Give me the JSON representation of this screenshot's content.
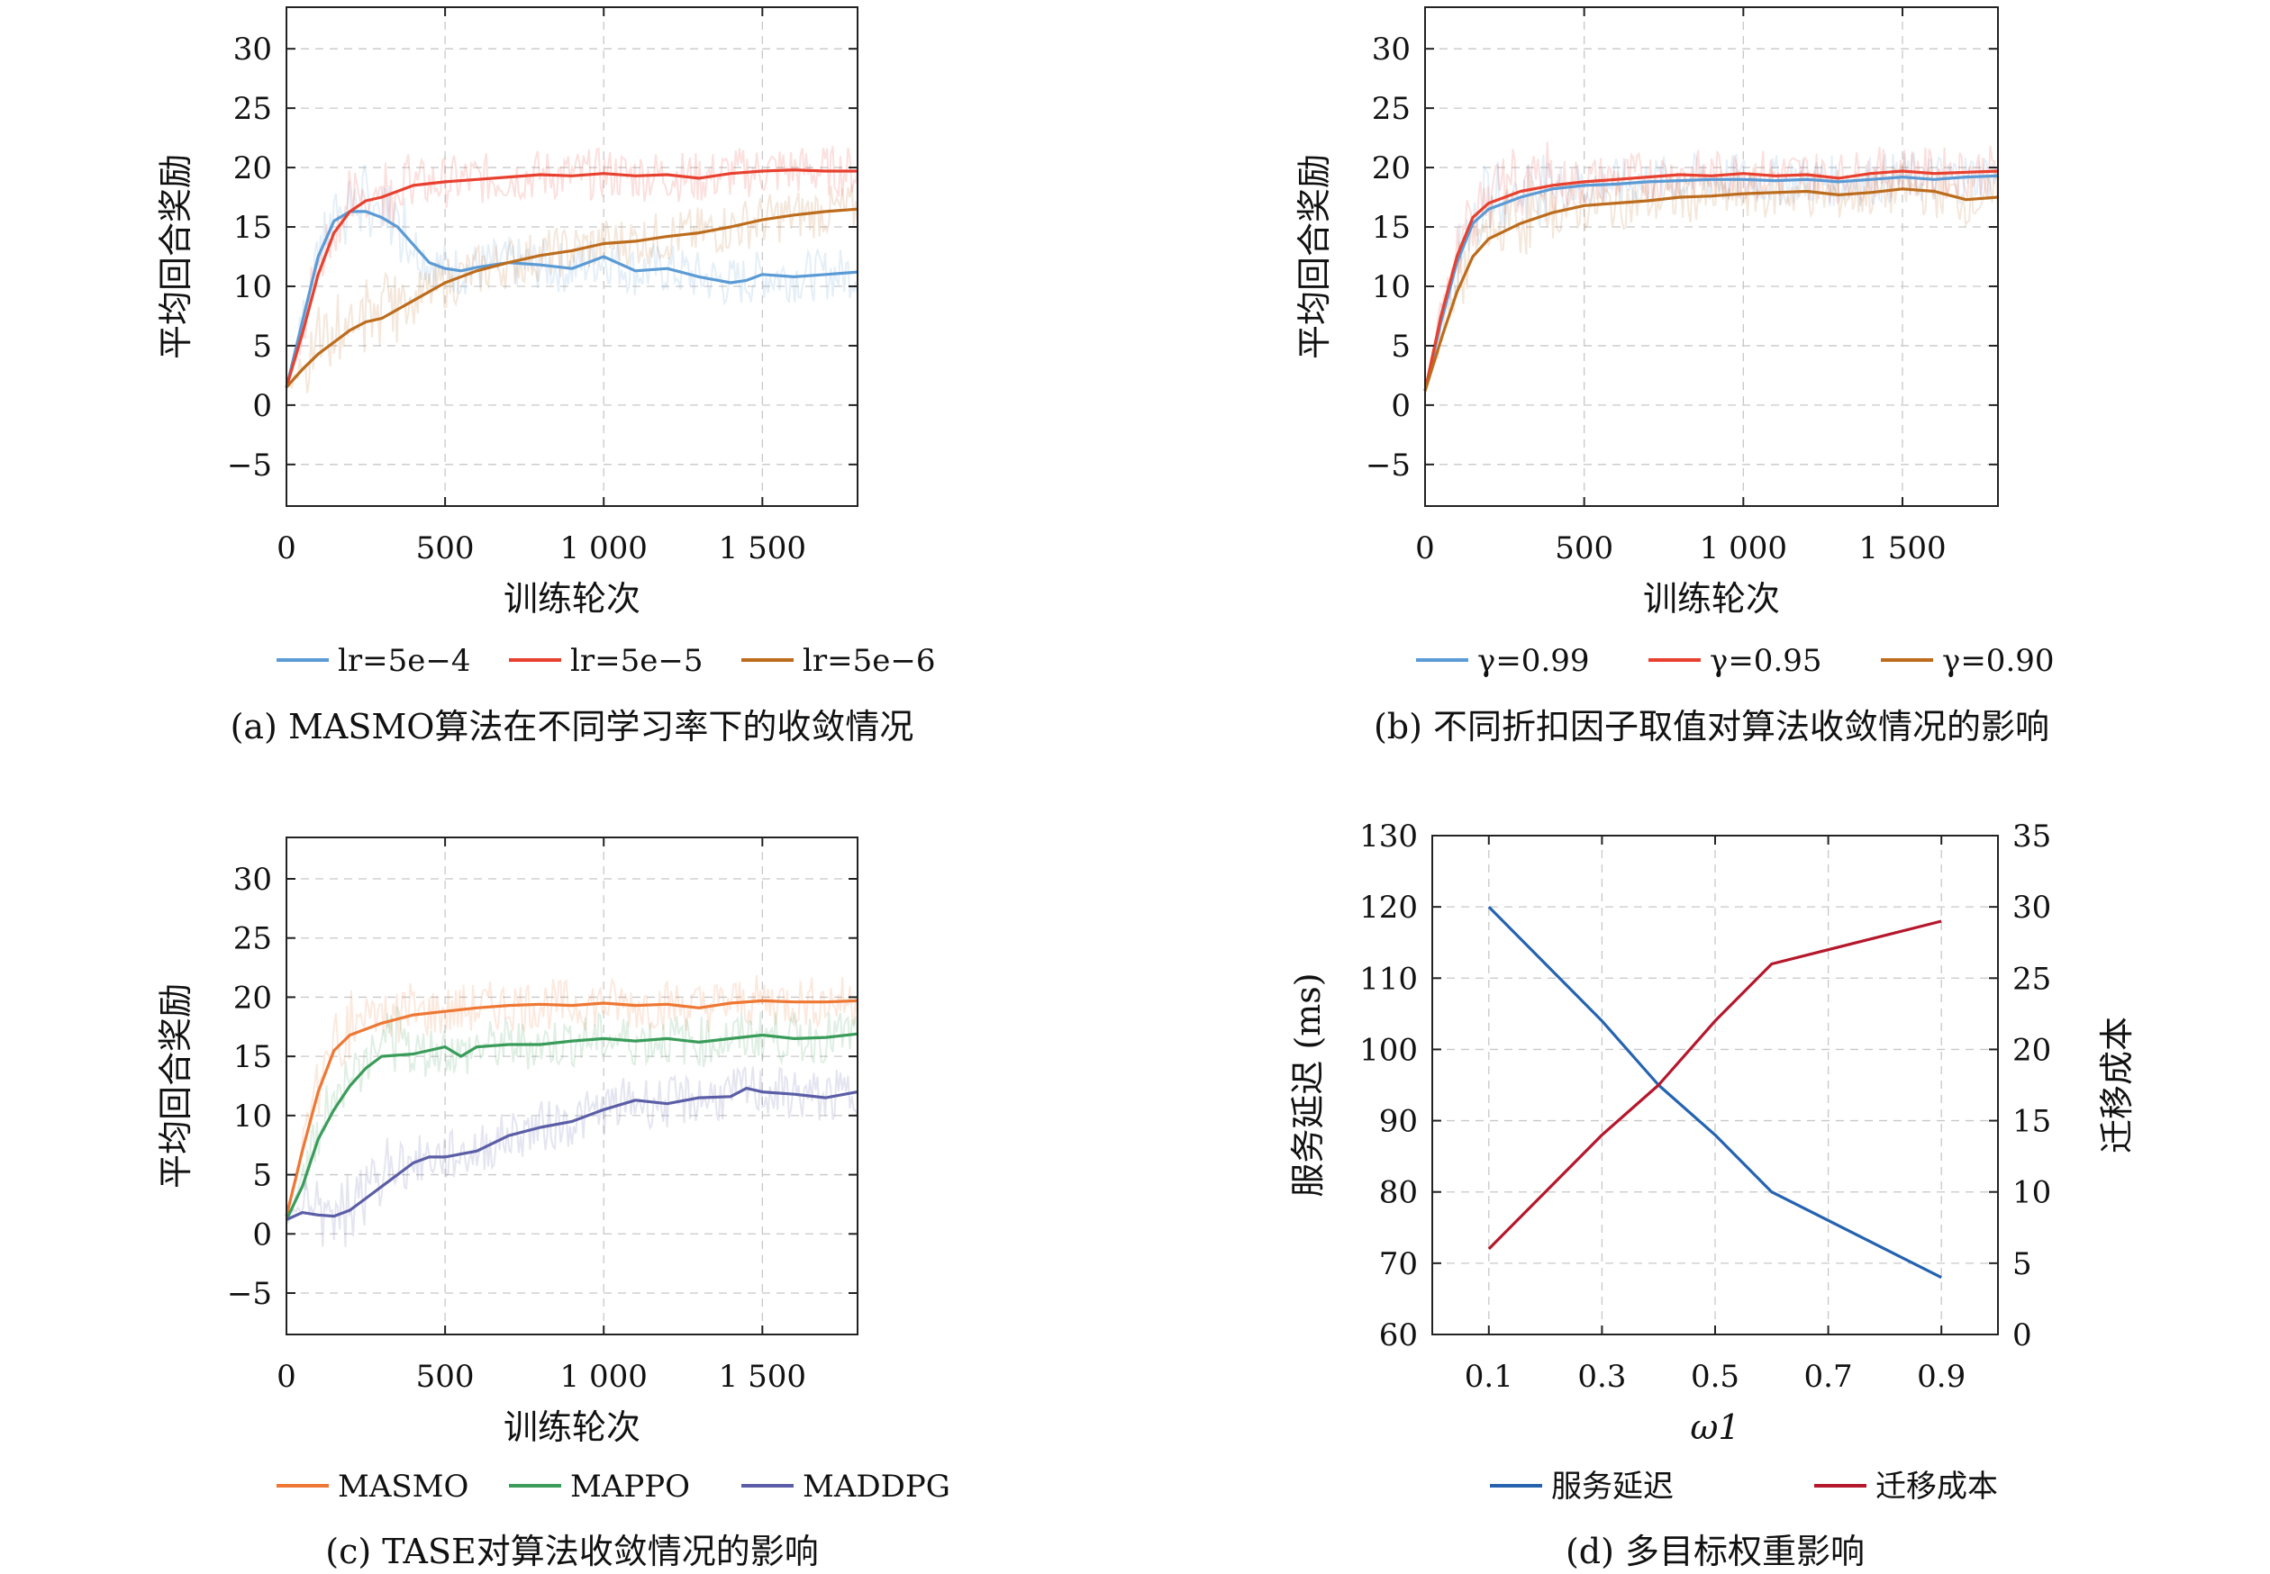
{
  "figure": {
    "panels": [
      {
        "id": "a",
        "caption": "(a) MASMO算法在不同学习率下的收敛情况",
        "legend_position": "below"
      },
      {
        "id": "b",
        "caption": "(b) 不同折扣因子取值对算法收敛情况的影响",
        "legend_position": "below"
      },
      {
        "id": "c",
        "caption": "(c) TASE对算法收敛情况的影响",
        "legend_position": "below"
      },
      {
        "id": "d",
        "caption": "(d) 多目标权重影响",
        "legend_position": "below"
      }
    ]
  },
  "chart_data": [
    {
      "type": "line",
      "panel": "a",
      "xlabel": "训练轮次",
      "ylabel": "平均回合奖励",
      "xlim": [
        0,
        1800
      ],
      "ylim": [
        -8.5,
        33.5
      ],
      "xticks": [
        0,
        500,
        1000,
        1500
      ],
      "xtick_labels": [
        "0",
        "500",
        "1 000",
        "1 500"
      ],
      "yticks": [
        -5,
        0,
        5,
        10,
        15,
        20,
        25,
        30
      ],
      "ytick_labels": [
        "−5",
        "0",
        "5",
        "10",
        "15",
        "20",
        "25",
        "30"
      ],
      "grid": true,
      "series": [
        {
          "name": "lr=5e−4",
          "color": "#5B9BD5",
          "x": [
            0,
            50,
            100,
            150,
            200,
            250,
            300,
            350,
            400,
            450,
            500,
            550,
            600,
            700,
            800,
            900,
            1000,
            1100,
            1200,
            1300,
            1400,
            1450,
            1500,
            1600,
            1700,
            1800
          ],
          "y": [
            1.5,
            7,
            12.5,
            15.5,
            16.3,
            16.3,
            15.8,
            15,
            13.5,
            12,
            11.5,
            11.3,
            11.6,
            12,
            11.8,
            11.5,
            12.5,
            11.3,
            11.5,
            10.8,
            10.3,
            10.5,
            11,
            10.8,
            11,
            11.2
          ]
        },
        {
          "name": "lr=5e−5",
          "color": "#E8402F",
          "x": [
            0,
            50,
            100,
            150,
            200,
            250,
            300,
            400,
            500,
            600,
            700,
            800,
            900,
            1000,
            1100,
            1200,
            1300,
            1400,
            1500,
            1600,
            1700,
            1800
          ],
          "y": [
            1.5,
            6,
            11,
            14.5,
            16.3,
            17.2,
            17.5,
            18.5,
            18.8,
            19,
            19.2,
            19.4,
            19.3,
            19.5,
            19.3,
            19.4,
            19.1,
            19.5,
            19.7,
            19.8,
            19.7,
            19.7
          ]
        },
        {
          "name": "lr=5e−6",
          "color": "#BC6C1C",
          "x": [
            0,
            50,
            100,
            150,
            200,
            250,
            300,
            400,
            500,
            600,
            700,
            800,
            900,
            1000,
            1100,
            1200,
            1300,
            1400,
            1500,
            1600,
            1700,
            1800
          ],
          "y": [
            1.5,
            3,
            4.3,
            5.3,
            6.3,
            7,
            7.3,
            8.8,
            10.3,
            11.3,
            12,
            12.6,
            13,
            13.6,
            13.8,
            14.2,
            14.5,
            15,
            15.6,
            16,
            16.3,
            16.5
          ]
        }
      ]
    },
    {
      "type": "line",
      "panel": "b",
      "xlabel": "训练轮次",
      "ylabel": "平均回合奖励",
      "xlim": [
        0,
        1800
      ],
      "ylim": [
        -8.5,
        33.5
      ],
      "xticks": [
        0,
        500,
        1000,
        1500
      ],
      "xtick_labels": [
        "0",
        "500",
        "1 000",
        "1 500"
      ],
      "yticks": [
        -5,
        0,
        5,
        10,
        15,
        20,
        25,
        30
      ],
      "ytick_labels": [
        "−5",
        "0",
        "5",
        "10",
        "15",
        "20",
        "25",
        "30"
      ],
      "grid": true,
      "series": [
        {
          "name": "γ=0.99",
          "color": "#5B9BD5",
          "x": [
            0,
            50,
            100,
            150,
            200,
            300,
            400,
            500,
            600,
            700,
            800,
            900,
            1000,
            1100,
            1200,
            1300,
            1400,
            1500,
            1600,
            1700,
            1800
          ],
          "y": [
            1.2,
            7,
            12,
            15.3,
            16.5,
            17.5,
            18.2,
            18.5,
            18.6,
            18.8,
            18.9,
            19,
            19,
            18.9,
            19,
            18.8,
            19,
            19.2,
            19,
            19.2,
            19.3
          ]
        },
        {
          "name": "γ=0.95",
          "color": "#E8402F",
          "x": [
            0,
            50,
            100,
            150,
            200,
            300,
            400,
            500,
            600,
            700,
            800,
            900,
            1000,
            1100,
            1200,
            1300,
            1400,
            1500,
            1600,
            1700,
            1800
          ],
          "y": [
            1.2,
            7.5,
            12.5,
            15.8,
            17,
            18,
            18.5,
            18.8,
            19,
            19.2,
            19.4,
            19.3,
            19.5,
            19.3,
            19.4,
            19.1,
            19.5,
            19.7,
            19.5,
            19.6,
            19.7
          ]
        },
        {
          "name": "γ=0.90",
          "color": "#BC6C1C",
          "x": [
            0,
            50,
            100,
            150,
            200,
            300,
            400,
            500,
            600,
            700,
            800,
            900,
            1000,
            1100,
            1200,
            1300,
            1400,
            1500,
            1600,
            1700,
            1800
          ],
          "y": [
            1.2,
            5.5,
            9.5,
            12.5,
            14,
            15.3,
            16.2,
            16.8,
            17,
            17.2,
            17.5,
            17.6,
            17.8,
            17.9,
            18,
            17.7,
            17.9,
            18.2,
            18,
            17.3,
            17.5
          ]
        }
      ]
    },
    {
      "type": "line",
      "panel": "c",
      "xlabel": "训练轮次",
      "ylabel": "平均回合奖励",
      "xlim": [
        0,
        1800
      ],
      "ylim": [
        -8.5,
        33.5
      ],
      "xticks": [
        0,
        500,
        1000,
        1500
      ],
      "xtick_labels": [
        "0",
        "500",
        "1 000",
        "1 500"
      ],
      "yticks": [
        -5,
        0,
        5,
        10,
        15,
        20,
        25,
        30
      ],
      "ytick_labels": [
        "−5",
        "0",
        "5",
        "10",
        "15",
        "20",
        "25",
        "30"
      ],
      "grid": true,
      "series": [
        {
          "name": "MASMO",
          "color": "#EE7733",
          "x": [
            0,
            50,
            100,
            150,
            200,
            300,
            400,
            500,
            600,
            700,
            800,
            900,
            1000,
            1100,
            1200,
            1300,
            1400,
            1500,
            1600,
            1700,
            1800
          ],
          "y": [
            1.5,
            7,
            12,
            15.5,
            16.8,
            17.8,
            18.5,
            18.8,
            19.1,
            19.3,
            19.4,
            19.3,
            19.5,
            19.3,
            19.4,
            19.1,
            19.5,
            19.7,
            19.6,
            19.6,
            19.7
          ]
        },
        {
          "name": "MAPPO",
          "color": "#3A9C5A",
          "x": [
            0,
            50,
            100,
            150,
            200,
            250,
            300,
            400,
            500,
            550,
            600,
            700,
            800,
            900,
            1000,
            1100,
            1200,
            1300,
            1400,
            1500,
            1600,
            1700,
            1800
          ],
          "y": [
            1.2,
            4,
            8,
            10.5,
            12.5,
            14,
            15,
            15.2,
            15.8,
            15,
            15.8,
            16,
            16,
            16.3,
            16.5,
            16.3,
            16.5,
            16.2,
            16.5,
            16.8,
            16.5,
            16.6,
            16.9
          ]
        },
        {
          "name": "MADDPG",
          "color": "#5B5EA6",
          "x": [
            0,
            50,
            100,
            150,
            200,
            250,
            300,
            400,
            450,
            500,
            600,
            700,
            800,
            900,
            1000,
            1100,
            1200,
            1300,
            1400,
            1450,
            1500,
            1600,
            1700,
            1800
          ],
          "y": [
            1.2,
            1.8,
            1.6,
            1.5,
            2,
            3,
            4,
            6,
            6.5,
            6.5,
            7,
            8.3,
            9,
            9.5,
            10.5,
            11.3,
            11,
            11.5,
            11.6,
            12.3,
            12,
            11.8,
            11.5,
            12
          ]
        }
      ]
    },
    {
      "type": "line",
      "panel": "d",
      "xlabel": "ω1",
      "ylabel": "服务延迟 (ms)",
      "y2label": "迁移成本",
      "xlim": [
        0,
        1.0
      ],
      "xticks": [
        0.1,
        0.3,
        0.5,
        0.7,
        0.9
      ],
      "xtick_labels": [
        "0.1",
        "0.3",
        "0.5",
        "0.7",
        "0.9"
      ],
      "ylim": [
        60,
        130
      ],
      "yticks": [
        60,
        70,
        80,
        90,
        100,
        110,
        120,
        130
      ],
      "ytick_labels": [
        "60",
        "70",
        "80",
        "90",
        "100",
        "110",
        "120",
        "130"
      ],
      "y2lim": [
        0,
        35
      ],
      "y2ticks": [
        0,
        5,
        10,
        15,
        20,
        25,
        30,
        35
      ],
      "y2tick_labels": [
        "0",
        "5",
        "10",
        "15",
        "20",
        "25",
        "30",
        "35"
      ],
      "grid": true,
      "series": [
        {
          "name": "服务延迟",
          "color": "#2563B0",
          "axis": "left",
          "x": [
            0.1,
            0.3,
            0.4,
            0.5,
            0.6,
            0.9
          ],
          "y": [
            120,
            104,
            95,
            88,
            80,
            68
          ]
        },
        {
          "name": "迁移成本",
          "color": "#B5172C",
          "axis": "right",
          "x": [
            0.1,
            0.3,
            0.4,
            0.5,
            0.6,
            0.9
          ],
          "y": [
            6,
            14,
            17.5,
            22,
            26,
            29
          ]
        }
      ]
    }
  ]
}
